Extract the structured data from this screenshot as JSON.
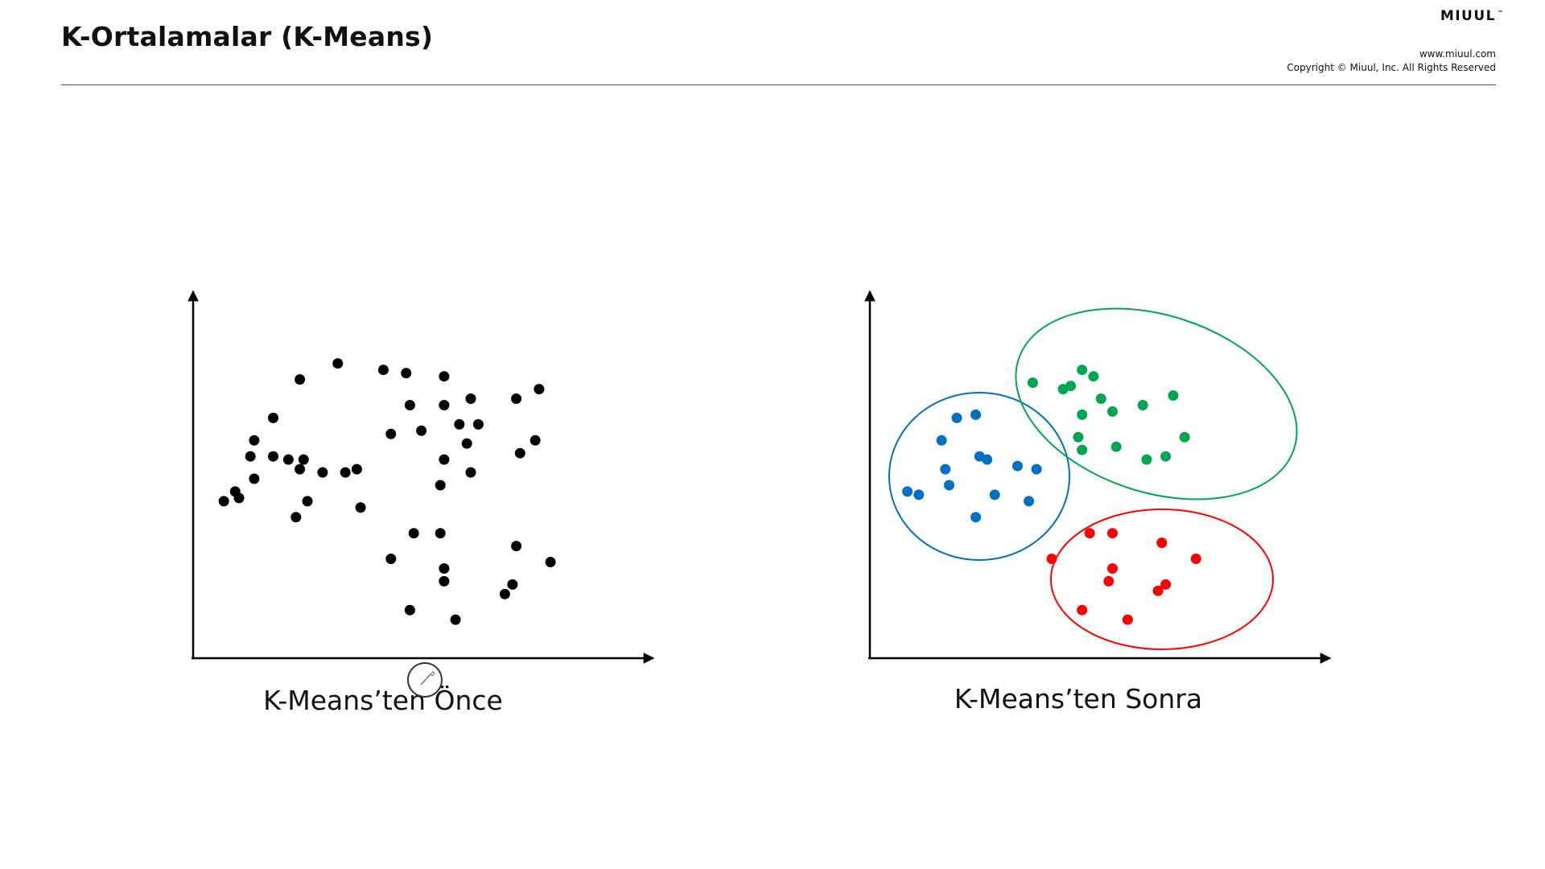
{
  "header": {
    "title": "K-Ortalamalar (K-Means)",
    "brand": "MIUUL",
    "brand_mark": "™",
    "website": "www.miuul.com",
    "copyright": "Copyright © Miuul, Inc. All Rights Reserved"
  },
  "cursor": {
    "icon": "pen-cursor-icon"
  },
  "chart_data": [
    {
      "type": "scatter",
      "caption": "K-Means’ten Önce",
      "xlim": [
        0,
        100
      ],
      "ylim": [
        0,
        100
      ],
      "grid": false,
      "axis_ticks": false,
      "series": [
        {
          "color": "#000000",
          "points": [
            [
              6,
              47
            ],
            [
              11,
              63
            ],
            [
              10,
              58
            ],
            [
              11,
              51
            ],
            [
              3,
              44
            ],
            [
              7,
              45
            ],
            [
              23,
              82
            ],
            [
              23,
              54
            ],
            [
              16,
              70
            ],
            [
              20,
              57
            ],
            [
              24,
              57
            ],
            [
              16,
              58
            ],
            [
              25,
              44
            ],
            [
              35,
              53
            ],
            [
              38,
              54
            ],
            [
              39,
              42
            ],
            [
              29,
              53
            ],
            [
              22,
              39
            ],
            [
              33,
              87
            ],
            [
              45,
              85
            ],
            [
              51,
              84
            ],
            [
              52,
              74
            ],
            [
              61,
              83
            ],
            [
              61,
              74
            ],
            [
              68,
              76
            ],
            [
              80,
              76
            ],
            [
              47,
              65
            ],
            [
              55,
              66
            ],
            [
              70,
              68
            ],
            [
              67,
              62
            ],
            [
              61,
              57
            ],
            [
              81,
              59
            ],
            [
              85,
              63
            ],
            [
              65,
              68
            ],
            [
              60,
              49
            ],
            [
              68,
              53
            ],
            [
              86,
              79
            ],
            [
              53,
              34
            ],
            [
              60,
              34
            ],
            [
              47,
              26
            ],
            [
              80,
              30
            ],
            [
              61,
              23
            ],
            [
              89,
              25
            ],
            [
              61,
              19
            ],
            [
              79,
              18
            ],
            [
              77,
              15
            ],
            [
              52,
              10
            ],
            [
              64,
              7
            ]
          ]
        }
      ]
    },
    {
      "type": "scatter",
      "caption": "K-Means’ten Sonra",
      "xlim": [
        0,
        100
      ],
      "ylim": [
        0,
        100
      ],
      "grid": false,
      "axis_ticks": false,
      "series": [
        {
          "color": "#0070C0",
          "points": [
            [
              14,
              63
            ],
            [
              18,
              70
            ],
            [
              15,
              54
            ],
            [
              24,
              58
            ],
            [
              26,
              57
            ],
            [
              23,
              71
            ],
            [
              8,
              46
            ],
            [
              16,
              49
            ],
            [
              5,
              47
            ],
            [
              34,
              55
            ],
            [
              28,
              46
            ],
            [
              39,
              54
            ],
            [
              37,
              44
            ],
            [
              23,
              39
            ]
          ]
        },
        {
          "color": "#00A550",
          "points": [
            [
              38,
              81
            ],
            [
              48,
              80
            ],
            [
              46,
              79
            ],
            [
              51,
              85
            ],
            [
              56,
              76
            ],
            [
              54,
              83
            ],
            [
              51,
              71
            ],
            [
              50,
              64
            ],
            [
              59,
              72
            ],
            [
              60,
              61
            ],
            [
              67,
              74
            ],
            [
              75,
              77
            ],
            [
              68,
              57
            ],
            [
              73,
              58
            ],
            [
              78,
              64
            ],
            [
              51,
              60
            ]
          ]
        },
        {
          "color": "#FF0000",
          "points": [
            [
              53,
              34
            ],
            [
              59,
              34
            ],
            [
              43,
              26
            ],
            [
              72,
              31
            ],
            [
              81,
              26
            ],
            [
              59,
              23
            ],
            [
              58,
              19
            ],
            [
              71,
              16
            ],
            [
              73,
              18
            ],
            [
              51,
              10
            ],
            [
              63,
              7
            ]
          ]
        }
      ]
    }
  ]
}
